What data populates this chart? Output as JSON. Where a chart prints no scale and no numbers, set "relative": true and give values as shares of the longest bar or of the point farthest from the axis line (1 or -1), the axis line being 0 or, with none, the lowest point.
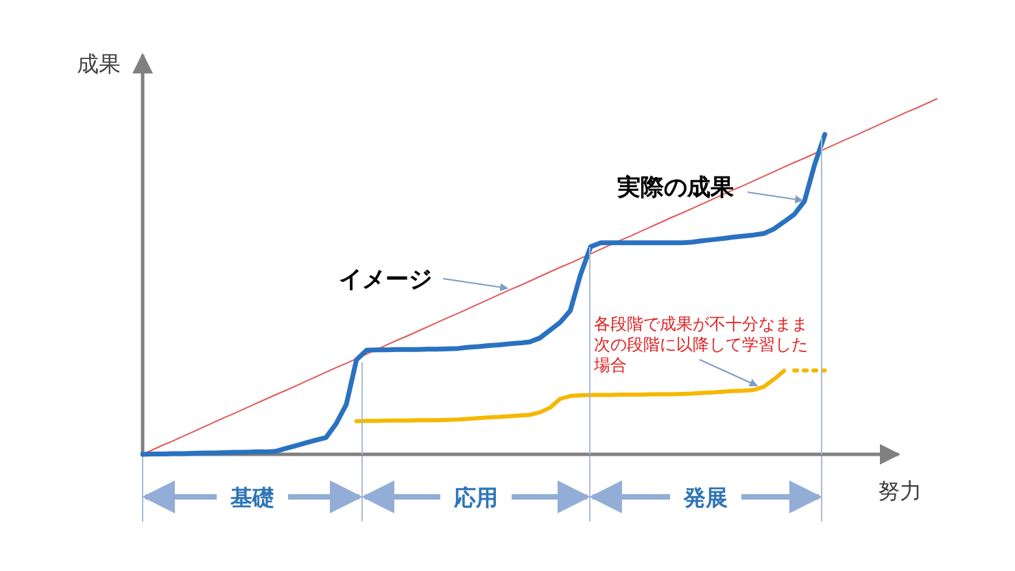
{
  "chart_data": {
    "type": "line",
    "relative": true,
    "xlabel": "努力",
    "ylabel": "成果",
    "categories": [
      null,
      null,
      null,
      null,
      null,
      null,
      null,
      null,
      null,
      null,
      null,
      null,
      null,
      null,
      null,
      null,
      null,
      null,
      null,
      null,
      null,
      null,
      null,
      null,
      null,
      null,
      null,
      null,
      null,
      null,
      null,
      null,
      null,
      null,
      null,
      null,
      null,
      null,
      null,
      null,
      null,
      null,
      null,
      null,
      null,
      null,
      null,
      null,
      null,
      null,
      null,
      null,
      null,
      null,
      null,
      null,
      null,
      null,
      null,
      null,
      null,
      null,
      null,
      null,
      null,
      null,
      null,
      null,
      null,
      null,
      null,
      null,
      null,
      null,
      null,
      null,
      null,
      null,
      null
    ],
    "series": [
      {
        "color": "#e05a5a",
        "values": [
          0,
          0.013,
          0.026,
          0.038,
          0.051,
          0.064,
          0.077,
          0.09,
          0.103,
          0.115,
          0.128,
          0.141,
          0.154,
          0.167,
          0.179,
          0.192,
          0.205,
          0.218,
          0.231,
          0.244,
          0.256,
          0.269,
          0.282,
          0.295,
          0.308,
          0.321,
          0.333,
          0.346,
          0.359,
          0.372,
          0.385,
          0.397,
          0.41,
          0.423,
          0.436,
          0.449,
          0.462,
          0.474,
          0.487,
          0.5,
          0.513,
          0.526,
          0.538,
          0.551,
          0.564,
          0.577,
          0.59,
          0.603,
          0.615,
          0.628,
          0.641,
          0.654,
          0.667,
          0.679,
          0.692,
          0.705,
          0.718,
          0.731,
          0.744,
          0.756,
          0.769,
          0.782,
          0.795,
          0.808,
          0.821,
          0.833,
          0.846,
          0.859,
          0.872,
          0.885,
          0.897,
          0.91,
          0.923,
          0.936,
          0.949,
          0.962,
          0.974,
          0.987,
          1
        ]
      },
      {
        "color": "#2a72c0",
        "values": [
          0,
          0.001,
          0.001,
          0.002,
          0.002,
          0.003,
          0.004,
          0.004,
          0.005,
          0.006,
          0.006,
          0.007,
          0.007,
          0.008,
          0.016,
          0.024,
          0.032,
          0.04,
          0.047,
          0.086,
          0.14,
          0.266,
          0.293,
          0.294,
          0.294,
          0.295,
          0.295,
          0.295,
          0.296,
          0.296,
          0.297,
          0.298,
          0.301,
          0.303,
          0.306,
          0.308,
          0.311,
          0.313,
          0.316,
          0.327,
          0.349,
          0.371,
          0.404,
          0.505,
          0.584,
          0.595,
          0.595,
          0.595,
          0.595,
          0.595,
          0.595,
          0.595,
          0.595,
          0.595,
          0.597,
          0.601,
          0.604,
          0.607,
          0.611,
          0.614,
          0.617,
          0.621,
          0.634,
          0.654,
          0.675,
          0.712,
          0.815,
          0.9,
          null,
          null,
          null,
          null,
          null,
          null,
          null,
          null,
          null,
          null,
          null
        ]
      },
      {
        "color": "#f5b800",
        "values": [
          null,
          null,
          null,
          null,
          null,
          null,
          null,
          null,
          null,
          null,
          null,
          null,
          null,
          null,
          null,
          null,
          null,
          null,
          null,
          null,
          null,
          0.093,
          0.094,
          0.094,
          0.095,
          0.095,
          0.095,
          0.096,
          0.096,
          0.096,
          0.097,
          0.098,
          0.1,
          0.102,
          0.104,
          0.105,
          0.107,
          0.109,
          0.111,
          0.118,
          0.131,
          0.156,
          0.164,
          0.166,
          0.167,
          0.167,
          0.167,
          0.168,
          0.168,
          0.168,
          0.169,
          0.169,
          0.169,
          0.17,
          0.171,
          0.173,
          0.174,
          0.176,
          0.178,
          0.179,
          0.181,
          0.19,
          0.211,
          0.235,
          null,
          null,
          null,
          null,
          null,
          null,
          null,
          null,
          null,
          null,
          null,
          null,
          null,
          null,
          null
        ]
      },
      {
        "color": "#f5b800",
        "line_style": "dotted",
        "values": [
          null,
          null,
          null,
          null,
          null,
          null,
          null,
          null,
          null,
          null,
          null,
          null,
          null,
          null,
          null,
          null,
          null,
          null,
          null,
          null,
          null,
          null,
          null,
          null,
          null,
          null,
          null,
          null,
          null,
          null,
          null,
          null,
          null,
          null,
          null,
          null,
          null,
          null,
          null,
          null,
          null,
          null,
          null,
          null,
          null,
          null,
          null,
          null,
          null,
          null,
          null,
          null,
          null,
          null,
          null,
          null,
          null,
          null,
          null,
          null,
          null,
          null,
          null,
          null,
          0.236,
          0.236,
          0.236,
          0.236,
          null,
          null,
          null,
          null,
          null,
          null,
          null,
          null,
          null,
          null,
          null
        ]
      }
    ],
    "annotations": [
      "イメージ",
      "実際の成果",
      "各段階で成果が不十分なまま次の段階に以降して学習した場合",
      "基礎",
      "応用",
      "発展"
    ]
  }
}
